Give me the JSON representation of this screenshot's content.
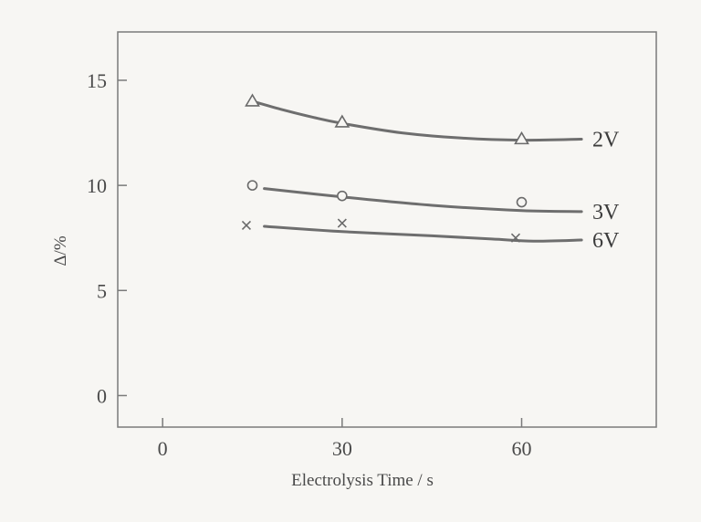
{
  "chart_data": {
    "type": "line",
    "title": "",
    "xlabel": "Electrolysis Time / s",
    "ylabel": "Δ/%",
    "xlim": [
      -7.5,
      82.5
    ],
    "ylim": [
      -1.5,
      17.3
    ],
    "xticks": [
      0,
      30,
      60
    ],
    "yticks": [
      0,
      5,
      10,
      15
    ],
    "grid": false,
    "legend": "none",
    "colors": {
      "axis": "#7a7a7a",
      "curve": "#6e6e6e",
      "marker": "#6a6a6a",
      "text": "#4a4a4a",
      "background": "#f7f6f3"
    },
    "series": [
      {
        "name": "2V",
        "marker": "triangle",
        "points": [
          [
            15,
            14.0
          ],
          [
            30,
            13.0
          ],
          [
            60,
            12.2
          ]
        ],
        "curve": [
          [
            15,
            14.0
          ],
          [
            20,
            13.6
          ],
          [
            25,
            13.25
          ],
          [
            30,
            12.95
          ],
          [
            40,
            12.5
          ],
          [
            50,
            12.25
          ],
          [
            60,
            12.15
          ],
          [
            70,
            12.2
          ]
        ]
      },
      {
        "name": "3V",
        "marker": "circle",
        "points": [
          [
            15,
            10.0
          ],
          [
            30,
            9.5
          ],
          [
            60,
            9.2
          ]
        ],
        "curve": [
          [
            17,
            9.85
          ],
          [
            30,
            9.45
          ],
          [
            45,
            9.05
          ],
          [
            60,
            8.8
          ],
          [
            70,
            8.75
          ]
        ]
      },
      {
        "name": "6V",
        "marker": "x",
        "points": [
          [
            14,
            8.1
          ],
          [
            30,
            8.2
          ],
          [
            59,
            7.5
          ]
        ],
        "curve": [
          [
            17,
            8.05
          ],
          [
            30,
            7.8
          ],
          [
            45,
            7.6
          ],
          [
            55,
            7.45
          ],
          [
            62,
            7.35
          ],
          [
            70,
            7.4
          ]
        ]
      }
    ]
  }
}
